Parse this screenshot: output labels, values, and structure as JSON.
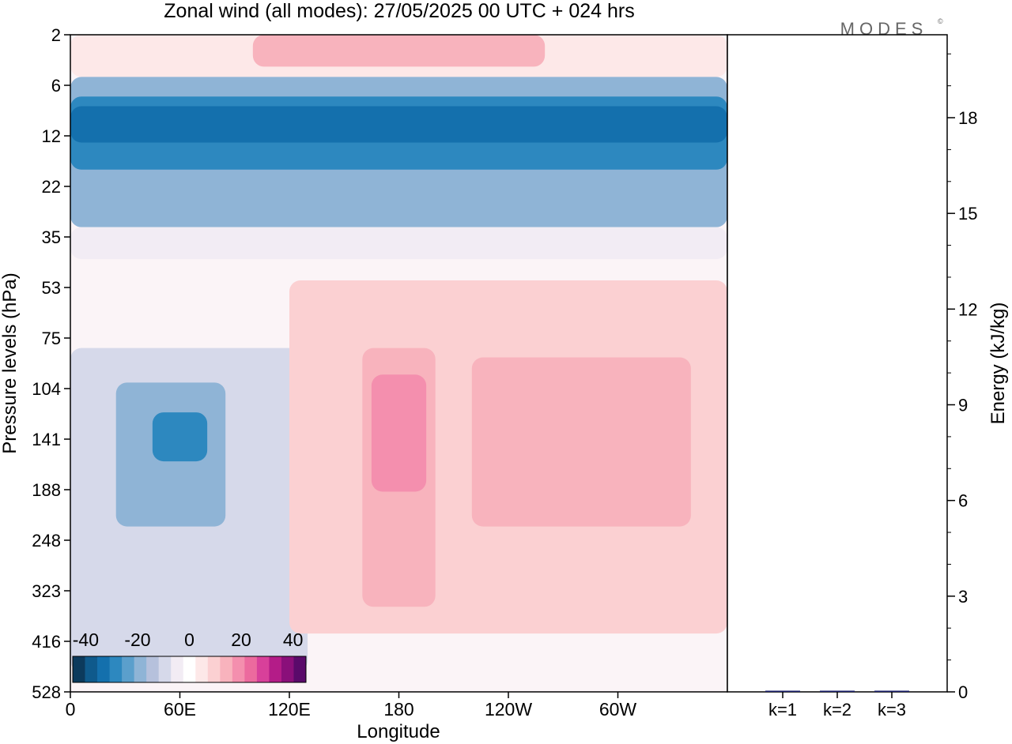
{
  "title": "Zonal wind (all modes):  27/05/2025  00 UTC  + 024 hrs",
  "logo_text": "MODES",
  "chart_data": [
    {
      "type": "heatmap",
      "xlabel": "Longitude",
      "ylabel": "Pressure levels (hPa)",
      "x_ticks": [
        "0",
        "60E",
        "120E",
        "180",
        "120W",
        "60W"
      ],
      "x_tick_degrees": [
        0,
        60,
        120,
        180,
        240,
        300
      ],
      "x_range_degrees": [
        0,
        360
      ],
      "y_ticks": [
        "2",
        "6",
        "12",
        "22",
        "35",
        "53",
        "75",
        "104",
        "141",
        "188",
        "248",
        "323",
        "416",
        "528"
      ],
      "y_range_hpa": [
        2,
        528
      ],
      "color_levels": [
        -45,
        -40,
        -35,
        -30,
        -25,
        -20,
        -15,
        -10,
        -5,
        0,
        5,
        10,
        15,
        20,
        25,
        30,
        35,
        40,
        45
      ],
      "colorbar_labels": [
        "-40",
        "-20",
        "0",
        "20",
        "40"
      ],
      "colorbar_colors": [
        "#0c3a5c",
        "#0f5a8c",
        "#1470ad",
        "#2d88bf",
        "#5b9fcc",
        "#8fb4d6",
        "#b6c1dc",
        "#d6d9ea",
        "#f2ecf4",
        "#ffffff",
        "#fde8e8",
        "#fbd0d2",
        "#f8b3bd",
        "#f48fae",
        "#ec6a9e",
        "#d8409a",
        "#b41c88",
        "#8a0f7a",
        "#5a0a6a"
      ],
      "regions": [
        {
          "lon_min": 0,
          "lon_max": 360,
          "p_top": 2,
          "p_bottom": 5,
          "value": 5
        },
        {
          "lon_min": 100,
          "lon_max": 260,
          "p_top": 2,
          "p_bottom": 4,
          "value": 15
        },
        {
          "lon_min": 0,
          "lon_max": 360,
          "p_top": 5,
          "p_bottom": 32,
          "value": -20
        },
        {
          "lon_min": 0,
          "lon_max": 360,
          "p_top": 7,
          "p_bottom": 18,
          "value": -30
        },
        {
          "lon_min": 0,
          "lon_max": 360,
          "p_top": 8,
          "p_bottom": 13,
          "value": -35
        },
        {
          "lon_min": 0,
          "lon_max": 360,
          "p_top": 32,
          "p_bottom": 42,
          "value": -5
        },
        {
          "lon_min": 0,
          "lon_max": 130,
          "p_top": 80,
          "p_bottom": 480,
          "value": -10
        },
        {
          "lon_min": 25,
          "lon_max": 85,
          "p_top": 100,
          "p_bottom": 230,
          "value": -20
        },
        {
          "lon_min": 45,
          "lon_max": 75,
          "p_top": 120,
          "p_bottom": 160,
          "value": -30
        },
        {
          "lon_min": 120,
          "lon_max": 360,
          "p_top": 50,
          "p_bottom": 400,
          "value": 10
        },
        {
          "lon_min": 160,
          "lon_max": 200,
          "p_top": 80,
          "p_bottom": 350,
          "value": 15
        },
        {
          "lon_min": 165,
          "lon_max": 195,
          "p_top": 95,
          "p_bottom": 190,
          "value": 20
        },
        {
          "lon_min": 220,
          "lon_max": 340,
          "p_top": 85,
          "p_bottom": 230,
          "value": 15
        }
      ]
    },
    {
      "type": "bar",
      "ylabel": "Energy (kJ/kg)",
      "categories": [
        "k=1",
        "k=2",
        "k=3"
      ],
      "values": [
        0.02,
        0.01,
        0.01
      ],
      "ylim": [
        0,
        20.6
      ],
      "y_ticks": [
        "0",
        "3",
        "6",
        "9",
        "12",
        "15",
        "18"
      ]
    }
  ]
}
